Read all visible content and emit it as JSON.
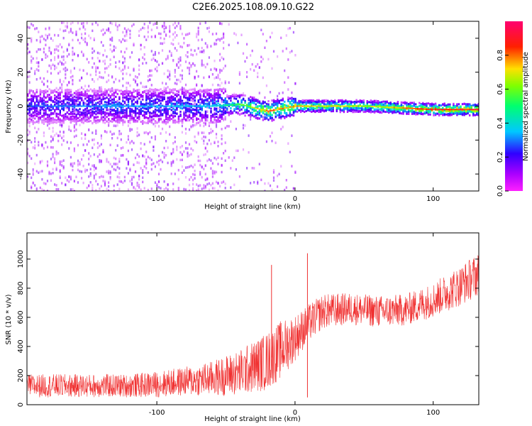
{
  "title": "C2E6.2025.108.09.10.G22",
  "colors": {
    "snr_line": "#f03030",
    "colormap": [
      "#ff20ff",
      "#8a00ff",
      "#0000ff",
      "#00d8ff",
      "#00ff60",
      "#c8ff00",
      "#ff3000",
      "#ff0060"
    ]
  },
  "chart_data": [
    {
      "type": "heatmap",
      "name": "spectrogram",
      "title": "C2E6.2025.108.09.10.G22",
      "xlabel": "Height of straight line (km)",
      "ylabel": "Frequency (Hz)",
      "xlim": [
        -194,
        133
      ],
      "ylim": [
        -50,
        50
      ],
      "x_ticks": [
        -100,
        0,
        100
      ],
      "y_ticks": [
        -40,
        -20,
        0,
        20,
        40
      ],
      "colorbar": {
        "label": "Normalized spectral amplitude",
        "range": [
          0.0,
          1.0
        ],
        "ticks": [
          0.0,
          0.2,
          0.4,
          0.6,
          0.8
        ]
      },
      "ridge": {
        "description_points_x": [
          -194,
          -60,
          -40,
          -20,
          0,
          50,
          100,
          133
        ],
        "center_hz": [
          0,
          0,
          1,
          -3,
          0,
          0,
          -2,
          -2
        ],
        "peak_amplitude": [
          0.3,
          0.4,
          0.6,
          0.85,
          0.8,
          0.7,
          0.95,
          0.95
        ]
      }
    },
    {
      "type": "line",
      "name": "snr",
      "xlabel": "Height of straight line (km)",
      "ylabel": "SNR (10 * v/v)",
      "xlim": [
        -194,
        133
      ],
      "ylim": [
        0,
        1180
      ],
      "x_ticks": [
        -100,
        0,
        100
      ],
      "y_ticks": [
        0,
        200,
        400,
        600,
        800,
        1000
      ],
      "series": [
        {
          "name": "SNR envelope",
          "x": [
            -194,
            -160,
            -120,
            -100,
            -80,
            -60,
            -40,
            -20,
            -10,
            0,
            10,
            20,
            40,
            60,
            80,
            100,
            120,
            133
          ],
          "mean": [
            130,
            130,
            130,
            140,
            160,
            180,
            220,
            300,
            380,
            460,
            560,
            640,
            660,
            640,
            650,
            720,
            820,
            900
          ],
          "spread": [
            80,
            80,
            80,
            90,
            100,
            120,
            160,
            200,
            200,
            160,
            130,
            120,
            110,
            110,
            110,
            120,
            140,
            150
          ]
        }
      ],
      "spikes": [
        {
          "x": -17,
          "y": 960
        },
        {
          "x": 9,
          "y": 1040
        },
        {
          "x": 9,
          "y": 50
        }
      ]
    }
  ]
}
